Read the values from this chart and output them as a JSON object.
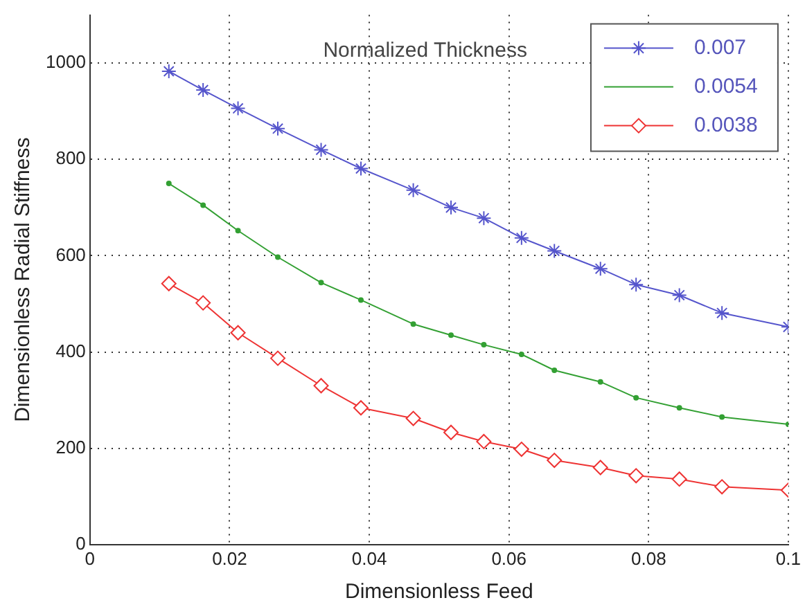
{
  "chart_data": {
    "type": "line",
    "legend_title": "Normalized Thickness",
    "xlabel": "Dimensionless Feed",
    "ylabel": "Dimensionless Radial Stiffness",
    "x": [
      0.0113,
      0.0162,
      0.0212,
      0.0269,
      0.0331,
      0.0388,
      0.0463,
      0.0517,
      0.0564,
      0.0618,
      0.0665,
      0.0731,
      0.0782,
      0.0844,
      0.0905,
      0.1
    ],
    "xlim": [
      0,
      0.1
    ],
    "xticks": [
      0,
      0.02,
      0.04,
      0.06,
      0.08,
      0.1
    ],
    "ylim": [
      0,
      1100
    ],
    "yticks": [
      0,
      200,
      400,
      600,
      800,
      1000
    ],
    "grid": true,
    "legend": "top right",
    "line_style": "solid",
    "series": [
      {
        "name": "0.007",
        "color": "#5555cc",
        "marker": "cross",
        "values": [
          983,
          944,
          906,
          864,
          820,
          781,
          736,
          700,
          678,
          637,
          610,
          573,
          540,
          518,
          481,
          452
        ]
      },
      {
        "name": "0.0054",
        "color": "#33a033",
        "marker": "circle",
        "values": [
          750,
          705,
          652,
          597,
          544,
          508,
          458,
          435,
          415,
          395,
          362,
          338,
          305,
          284,
          265,
          250
        ]
      },
      {
        "name": "0.0038",
        "color": "#ee3333",
        "marker": "diamond",
        "values": [
          542,
          502,
          440,
          387,
          330,
          284,
          262,
          233,
          214,
          198,
          175,
          160,
          143,
          136,
          120,
          113
        ]
      }
    ]
  }
}
